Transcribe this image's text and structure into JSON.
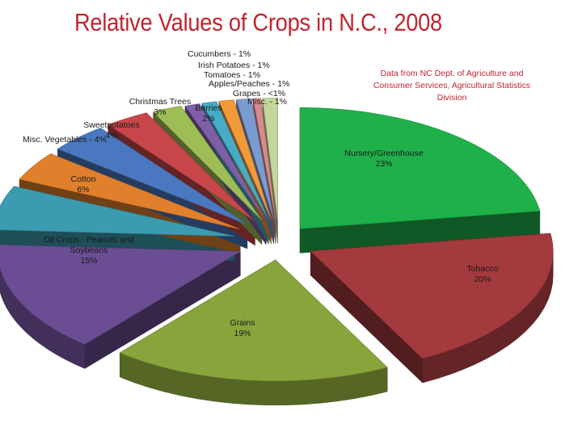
{
  "title": "Relative Values of Crops in N.C., 2008",
  "source_note": "Data from NC Dept. of Agriculture and Consumer Services, Agricultural Statistics Division",
  "chart_data": {
    "type": "pie",
    "title": "Relative Values of Crops in N.C., 2008",
    "slices": [
      {
        "name": "Nursery/Greenhouse",
        "label": "23%",
        "value": 23,
        "color": "#1fb04a"
      },
      {
        "name": "Tobacco",
        "label": "20%",
        "value": 20,
        "color": "#a33a3d"
      },
      {
        "name": "Grains",
        "label": "19%",
        "value": 19,
        "color": "#8aa43c"
      },
      {
        "name": "Oil Crops - Peanuts and Soybeans",
        "label": "15%",
        "value": 15,
        "color": "#6b4d93"
      },
      {
        "name": "Cotton",
        "label": "6%",
        "value": 6,
        "color": "#3b9bb0"
      },
      {
        "name": "Misc. Vegetables",
        "label": "4%",
        "value": 4,
        "color": "#e07f2c"
      },
      {
        "name": "Sweetpotatoes",
        "label": "4%",
        "value": 4,
        "color": "#4a78c0"
      },
      {
        "name": "Christmas Trees",
        "label": "3%",
        "value": 3,
        "color": "#c8464a"
      },
      {
        "name": "Berries",
        "label": "2%",
        "value": 2,
        "color": "#9fbd55"
      },
      {
        "name": "Cucumbers",
        "label": "1%",
        "value": 1,
        "color": "#7f5fa8"
      },
      {
        "name": "Irish Potatoes",
        "label": "1%",
        "value": 1,
        "color": "#47acc6"
      },
      {
        "name": "Tomatoes",
        "label": "1%",
        "value": 1,
        "color": "#f2993a"
      },
      {
        "name": "Apples/Peaches",
        "label": "1%",
        "value": 1,
        "color": "#7a9bd0"
      },
      {
        "name": "Grapes",
        "label": "<1%",
        "value": 0.5,
        "color": "#d88a8c"
      },
      {
        "name": "Misc.",
        "label": "1%",
        "value": 1,
        "color": "#c4d79a"
      }
    ]
  }
}
